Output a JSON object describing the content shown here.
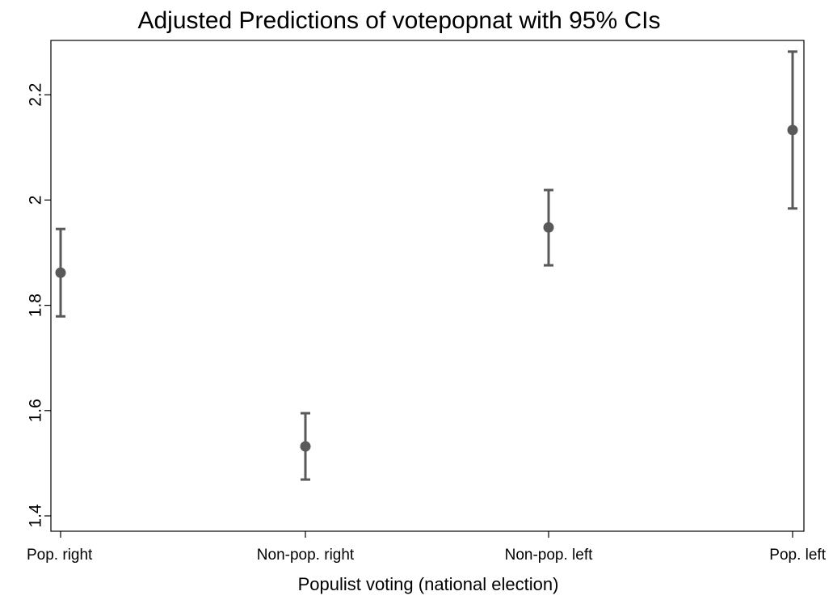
{
  "chart_data": {
    "type": "scatter",
    "title": "Adjusted Predictions of votepopnat with 95% CIs",
    "xlabel": "Populist voting (national election)",
    "ylabel": "",
    "categories": [
      "Pop. right",
      "Non-pop. right",
      "Non-pop. left",
      "Pop. left"
    ],
    "series": [
      {
        "values": [
          1.862,
          1.532,
          1.948,
          2.133
        ],
        "ci_lower": [
          1.779,
          1.469,
          1.876,
          1.984
        ],
        "ci_upper": [
          1.945,
          1.595,
          2.019,
          2.282
        ]
      }
    ],
    "yticks": [
      "1.4",
      "1.6",
      "1.8",
      "2",
      "2.2"
    ],
    "ylim": [
      1.39,
      2.3
    ],
    "grid": false,
    "marker_color": "#595959"
  }
}
